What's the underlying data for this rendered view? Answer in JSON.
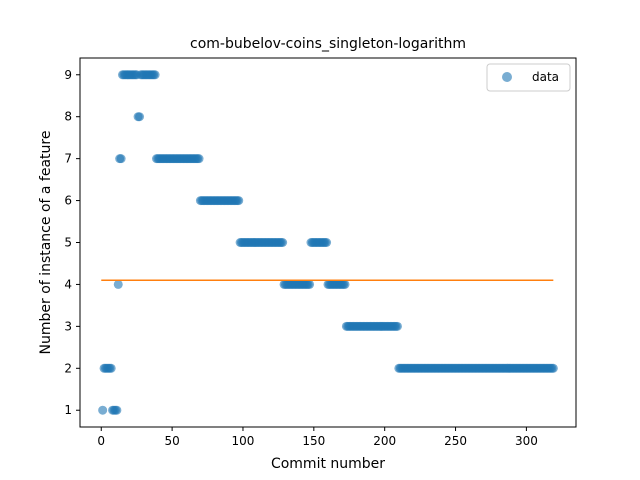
{
  "chart_data": {
    "type": "scatter",
    "title": "com-bubelov-coins_singleton-logarithm",
    "xlabel": "Commit number",
    "ylabel": "Number of instance of a feature",
    "xlim": [
      -15,
      335
    ],
    "ylim": [
      0.6,
      9.4
    ],
    "xticks": [
      0,
      50,
      100,
      150,
      200,
      250,
      300
    ],
    "yticks": [
      1,
      2,
      3,
      4,
      5,
      6,
      7,
      8,
      9
    ],
    "grid": false,
    "legend": {
      "position": "top-right",
      "entries": [
        "data"
      ]
    },
    "colors": {
      "data": "#1f77b4",
      "trend": "#ff7f0e"
    },
    "segments": [
      {
        "y": 1,
        "x_start": 1,
        "x_end": 1
      },
      {
        "y": 2,
        "x_start": 2,
        "x_end": 7
      },
      {
        "y": 1,
        "x_start": 8,
        "x_end": 11
      },
      {
        "y": 4,
        "x_start": 12,
        "x_end": 12
      },
      {
        "y": 7,
        "x_start": 13,
        "x_end": 14
      },
      {
        "y": 9,
        "x_start": 15,
        "x_end": 25
      },
      {
        "y": 8,
        "x_start": 26,
        "x_end": 27
      },
      {
        "y": 9,
        "x_start": 28,
        "x_end": 38
      },
      {
        "y": 7,
        "x_start": 39,
        "x_end": 69
      },
      {
        "y": 6,
        "x_start": 70,
        "x_end": 97
      },
      {
        "y": 5,
        "x_start": 98,
        "x_end": 128
      },
      {
        "y": 4,
        "x_start": 129,
        "x_end": 147
      },
      {
        "y": 5,
        "x_start": 148,
        "x_end": 159
      },
      {
        "y": 4,
        "x_start": 160,
        "x_end": 172
      },
      {
        "y": 3,
        "x_start": 173,
        "x_end": 209
      },
      {
        "y": 2,
        "x_start": 210,
        "x_end": 319
      }
    ],
    "trend_line": {
      "x": [
        0,
        319
      ],
      "y": [
        4.1,
        4.1
      ]
    }
  }
}
